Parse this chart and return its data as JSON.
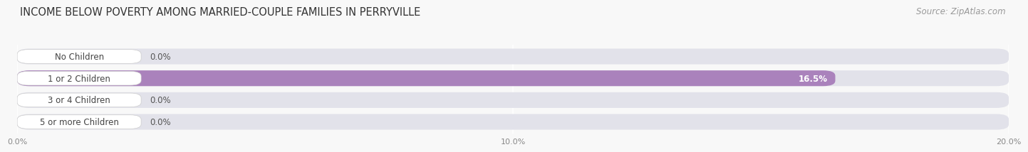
{
  "title": "INCOME BELOW POVERTY AMONG MARRIED-COUPLE FAMILIES IN PERRYVILLE",
  "source": "Source: ZipAtlas.com",
  "categories": [
    "No Children",
    "1 or 2 Children",
    "3 or 4 Children",
    "5 or more Children"
  ],
  "values": [
    0.0,
    16.5,
    0.0,
    0.0
  ],
  "bar_colors": [
    "#aabcd8",
    "#aa82bc",
    "#5abcb0",
    "#a0a8d0"
  ],
  "bar_bg_colors": [
    "#e4e4ee",
    "#e4e4ee",
    "#e4e4ee",
    "#e4e4ee"
  ],
  "xlim": [
    0,
    20.0
  ],
  "xticks": [
    0.0,
    10.0,
    20.0
  ],
  "xtick_labels": [
    "0.0%",
    "10.0%",
    "20.0%"
  ],
  "background_color": "#f8f8f8",
  "title_fontsize": 10.5,
  "source_fontsize": 8.5,
  "label_fontsize": 8.5,
  "value_fontsize": 8.5
}
